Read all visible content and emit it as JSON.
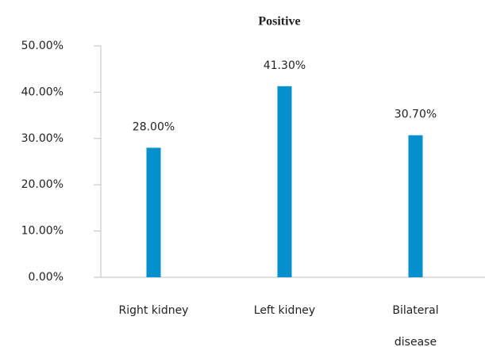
{
  "chart_data": {
    "type": "bar",
    "title": "Positive",
    "categories": [
      "Right kidney",
      "Left kidney",
      "Bilateral disease"
    ],
    "values": [
      28,
      41.3,
      30.7
    ],
    "value_labels": [
      "28.00%",
      "41.30%",
      "30.70%"
    ],
    "color": "#0490cc",
    "ylim": [
      0,
      50
    ],
    "yticks": [
      {
        "value": 0,
        "label": "0.00%"
      },
      {
        "value": 10,
        "label": "10.00%"
      },
      {
        "value": 20,
        "label": "20.00%"
      },
      {
        "value": 30,
        "label": "30.00%"
      },
      {
        "value": 40,
        "label": "40.00%"
      },
      {
        "value": 50,
        "label": "50.00%"
      }
    ],
    "grid": false
  }
}
